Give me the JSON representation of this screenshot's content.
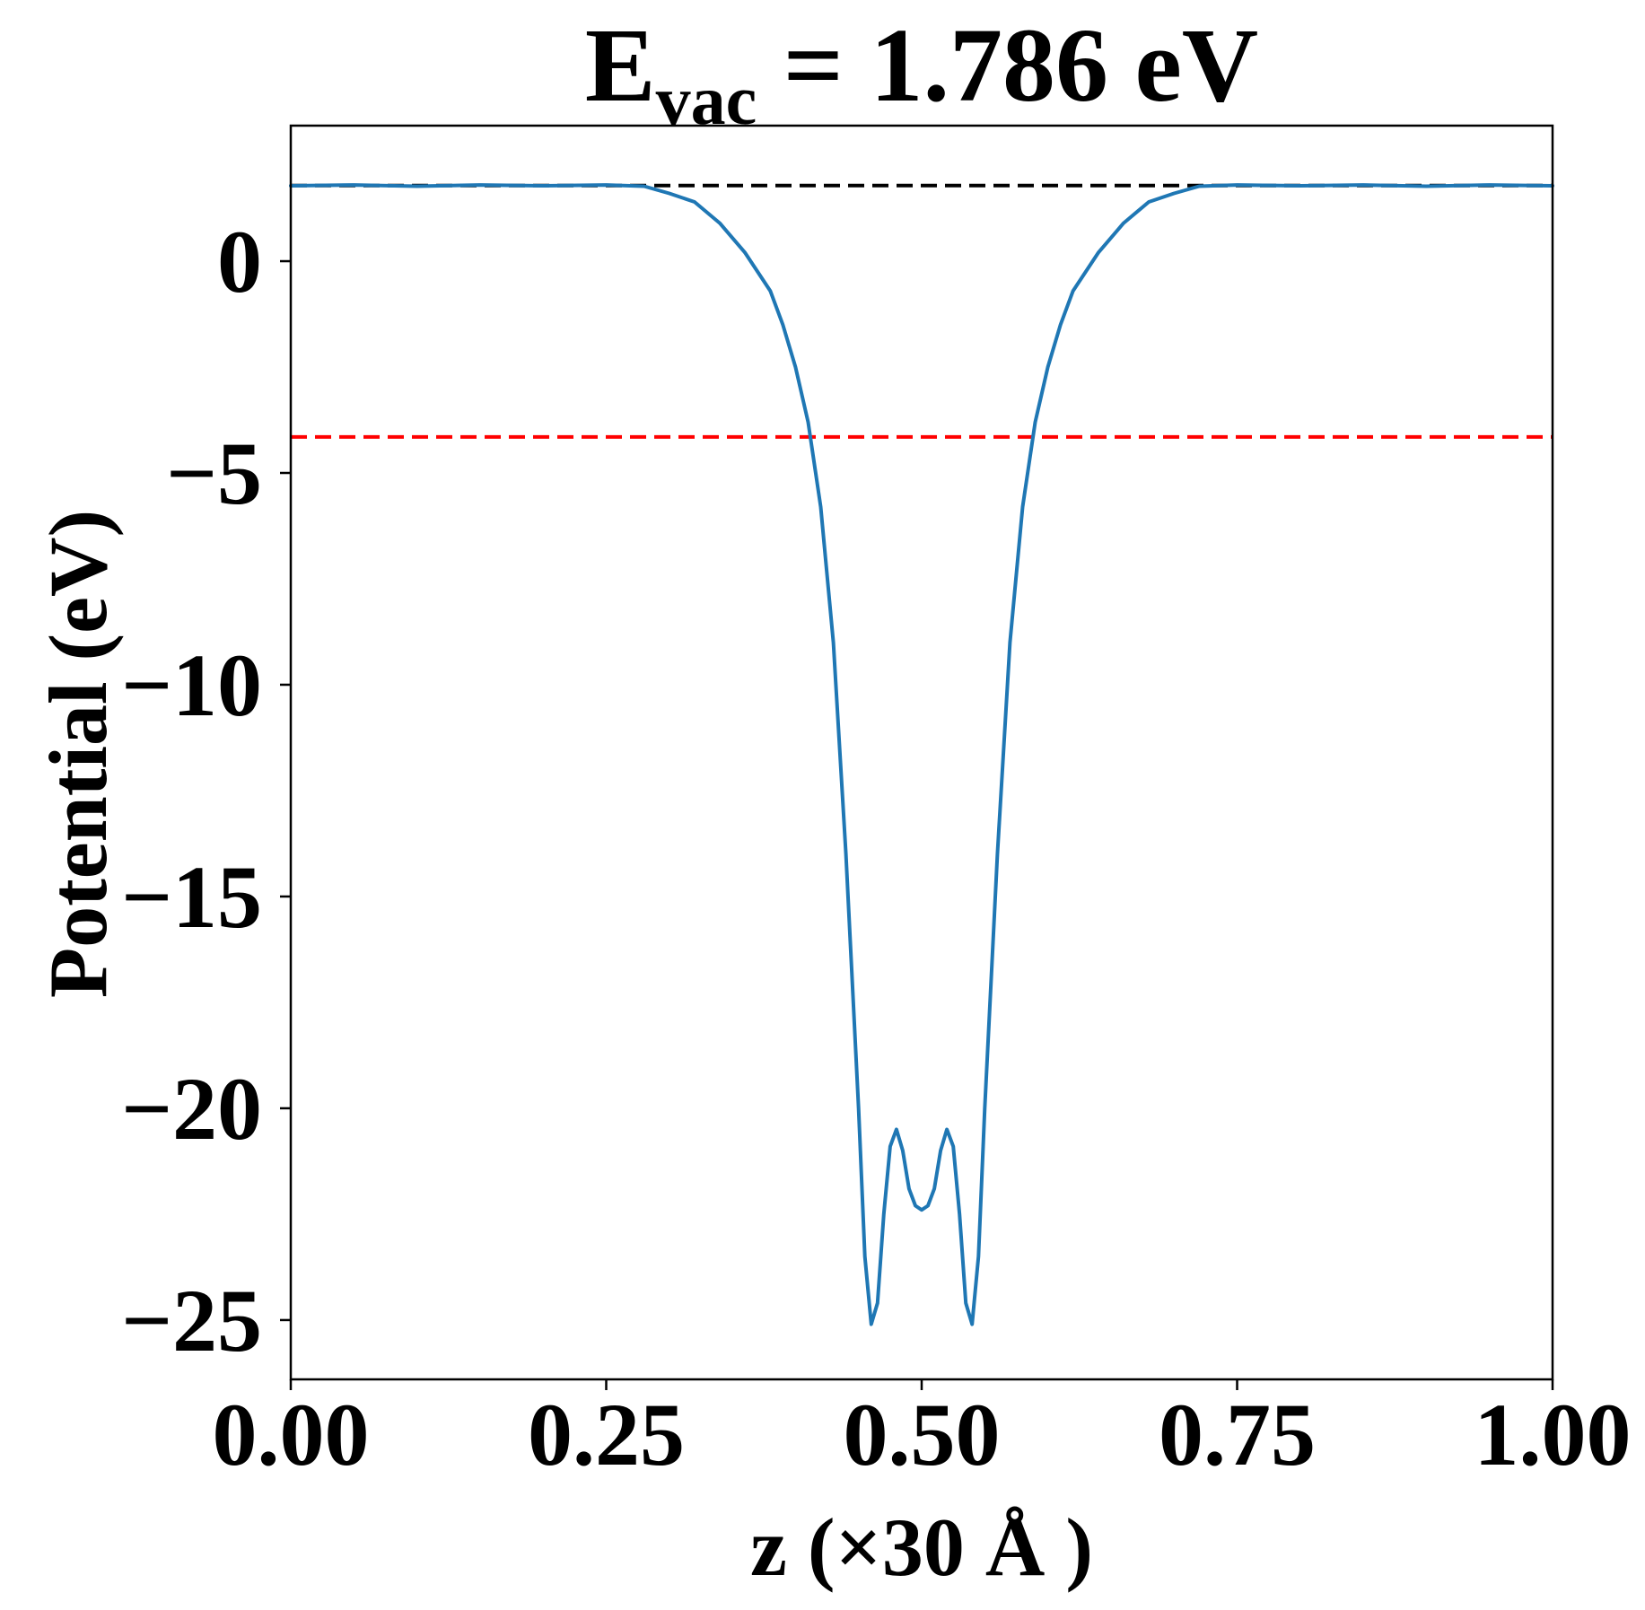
{
  "chart_data": {
    "type": "line",
    "title": {
      "main": "E",
      "subscript": "vac",
      "rest": " = 1.786 eV"
    },
    "xlabel": "z (×30 Å )",
    "ylabel": "Potential (eV)",
    "xlim": [
      0.0,
      1.0
    ],
    "ylim": [
      -26.4,
      3.2
    ],
    "x_ticks": [
      {
        "value": 0.0,
        "label": "0.00"
      },
      {
        "value": 0.25,
        "label": "0.25"
      },
      {
        "value": 0.5,
        "label": "0.50"
      },
      {
        "value": 0.75,
        "label": "0.75"
      },
      {
        "value": 1.0,
        "label": "1.00"
      }
    ],
    "y_ticks": [
      {
        "value": 0,
        "label": "0"
      },
      {
        "value": -5,
        "label": "−5"
      },
      {
        "value": -10,
        "label": "−10"
      },
      {
        "value": -15,
        "label": "−15"
      },
      {
        "value": -20,
        "label": "−20"
      },
      {
        "value": -25,
        "label": "−25"
      }
    ],
    "grid": false,
    "reference_lines": [
      {
        "y": 1.786,
        "color": "#000000",
        "style": "dashed"
      },
      {
        "y": -4.15,
        "color": "#ff0000",
        "style": "dashed"
      }
    ],
    "series": [
      {
        "color": "#1f77b4",
        "points": [
          [
            0.0,
            1.78
          ],
          [
            0.05,
            1.8
          ],
          [
            0.1,
            1.77
          ],
          [
            0.15,
            1.8
          ],
          [
            0.2,
            1.78
          ],
          [
            0.25,
            1.8
          ],
          [
            0.28,
            1.77
          ],
          [
            0.3,
            1.6
          ],
          [
            0.32,
            1.4
          ],
          [
            0.34,
            0.9
          ],
          [
            0.36,
            0.2
          ],
          [
            0.38,
            -0.7
          ],
          [
            0.39,
            -1.5
          ],
          [
            0.4,
            -2.5
          ],
          [
            0.41,
            -3.8
          ],
          [
            0.42,
            -5.8
          ],
          [
            0.43,
            -9.0
          ],
          [
            0.44,
            -14.0
          ],
          [
            0.45,
            -20.0
          ],
          [
            0.455,
            -23.5
          ],
          [
            0.46,
            -25.1
          ],
          [
            0.465,
            -24.6
          ],
          [
            0.47,
            -22.5
          ],
          [
            0.475,
            -20.9
          ],
          [
            0.48,
            -20.5
          ],
          [
            0.485,
            -21.0
          ],
          [
            0.49,
            -21.9
          ],
          [
            0.495,
            -22.3
          ],
          [
            0.5,
            -22.4
          ],
          [
            0.505,
            -22.3
          ],
          [
            0.51,
            -21.9
          ],
          [
            0.515,
            -21.0
          ],
          [
            0.52,
            -20.5
          ],
          [
            0.525,
            -20.9
          ],
          [
            0.53,
            -22.5
          ],
          [
            0.535,
            -24.6
          ],
          [
            0.54,
            -25.1
          ],
          [
            0.545,
            -23.5
          ],
          [
            0.55,
            -20.0
          ],
          [
            0.56,
            -14.0
          ],
          [
            0.57,
            -9.0
          ],
          [
            0.58,
            -5.8
          ],
          [
            0.59,
            -3.8
          ],
          [
            0.6,
            -2.5
          ],
          [
            0.61,
            -1.5
          ],
          [
            0.62,
            -0.7
          ],
          [
            0.64,
            0.2
          ],
          [
            0.66,
            0.9
          ],
          [
            0.68,
            1.4
          ],
          [
            0.7,
            1.6
          ],
          [
            0.72,
            1.77
          ],
          [
            0.75,
            1.8
          ],
          [
            0.8,
            1.78
          ],
          [
            0.85,
            1.8
          ],
          [
            0.9,
            1.77
          ],
          [
            0.95,
            1.8
          ],
          [
            1.0,
            1.78
          ]
        ]
      }
    ]
  }
}
